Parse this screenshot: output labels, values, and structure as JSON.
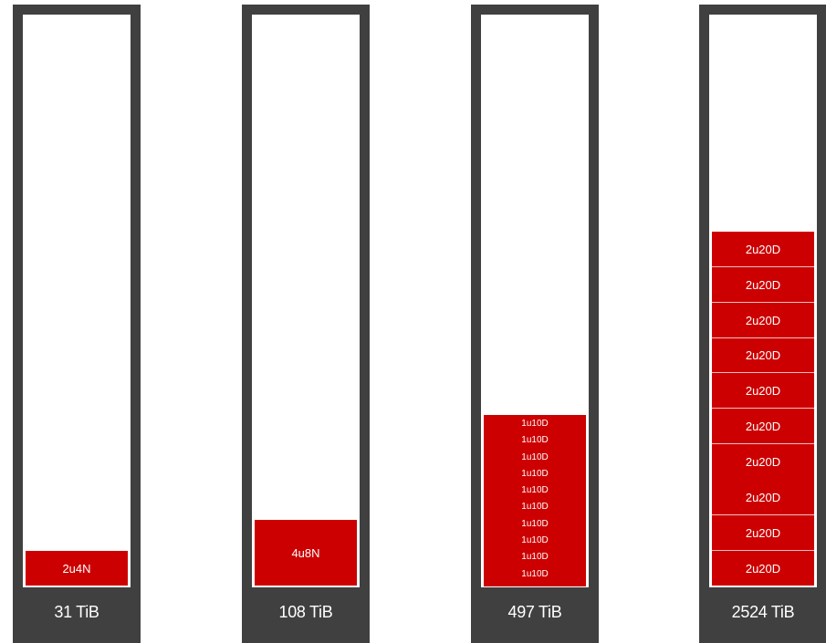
{
  "colors": {
    "rack_frame": "#404040",
    "server_unit": "#cc0000",
    "text": "#ffffff",
    "background": "#ffffff"
  },
  "racks": [
    {
      "capacity": "31 TiB",
      "units": [
        "2u4N"
      ]
    },
    {
      "capacity": "108 TiB",
      "units": [
        "4u8N"
      ]
    },
    {
      "capacity": "497 TiB",
      "units": [
        "1u10D",
        "1u10D",
        "1u10D",
        "1u10D",
        "1u10D",
        "1u10D",
        "1u10D",
        "1u10D",
        "1u10D",
        "1u10D"
      ]
    },
    {
      "capacity": "2524 TiB",
      "units": [
        "2u20D",
        "2u20D",
        "2u20D",
        "2u20D",
        "2u20D",
        "2u20D",
        "2u20D",
        "2u20D",
        "2u20D",
        "2u20D"
      ]
    }
  ]
}
